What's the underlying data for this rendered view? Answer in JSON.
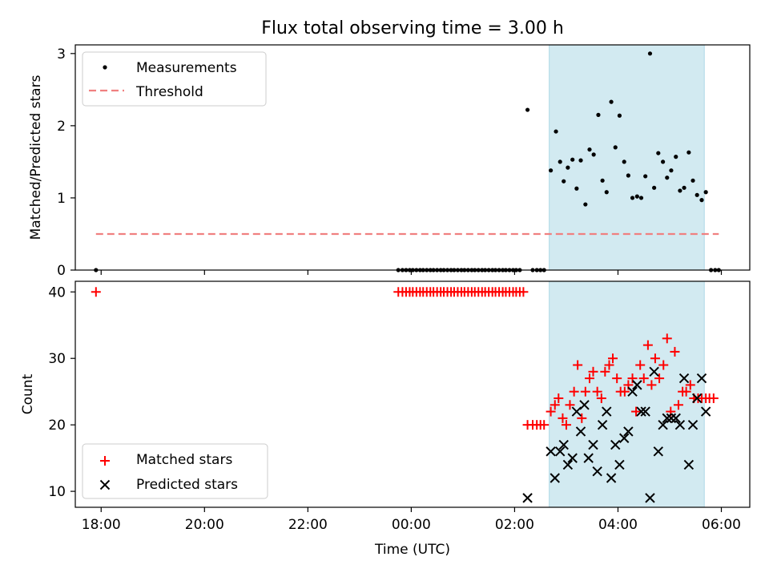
{
  "title": "Flux total observing time = 3.00 h",
  "colors": {
    "measurement": "#000000",
    "threshold": "#f08080",
    "shade": "#add8e6",
    "matched": "#ff0000",
    "predicted": "#000000"
  },
  "chart_data": [
    {
      "type": "scatter",
      "id": "top",
      "ylabel": "Matched/Predicted stars",
      "xlabel": "",
      "xlim": [
        -6.5,
        6.55
      ],
      "ylim": [
        0,
        3.12
      ],
      "yticks": [
        0,
        1,
        2,
        3
      ],
      "grid": false,
      "legend_position": "upper left",
      "shaded_span": [
        2.67,
        5.67
      ],
      "threshold": {
        "name": "Threshold",
        "y": 0.5,
        "x": [
          -6.1,
          5.95
        ]
      },
      "series": [
        {
          "name": "Measurements",
          "points": [
            [
              -6.1,
              0
            ],
            [
              -0.25,
              0
            ],
            [
              -0.17,
              0
            ],
            [
              -0.1,
              0
            ],
            [
              -0.03,
              0
            ],
            [
              0.03,
              0
            ],
            [
              0.1,
              0
            ],
            [
              0.17,
              0
            ],
            [
              0.23,
              0
            ],
            [
              0.3,
              0
            ],
            [
              0.37,
              0
            ],
            [
              0.43,
              0
            ],
            [
              0.5,
              0
            ],
            [
              0.57,
              0
            ],
            [
              0.63,
              0
            ],
            [
              0.7,
              0
            ],
            [
              0.77,
              0
            ],
            [
              0.83,
              0
            ],
            [
              0.9,
              0
            ],
            [
              0.97,
              0
            ],
            [
              1.03,
              0
            ],
            [
              1.1,
              0
            ],
            [
              1.17,
              0
            ],
            [
              1.23,
              0
            ],
            [
              1.3,
              0
            ],
            [
              1.37,
              0
            ],
            [
              1.43,
              0
            ],
            [
              1.5,
              0
            ],
            [
              1.57,
              0
            ],
            [
              1.63,
              0
            ],
            [
              1.7,
              0
            ],
            [
              1.77,
              0
            ],
            [
              1.83,
              0
            ],
            [
              1.9,
              0
            ],
            [
              1.97,
              0
            ],
            [
              2.03,
              0
            ],
            [
              2.1,
              0
            ],
            [
              2.25,
              2.22
            ],
            [
              2.35,
              0
            ],
            [
              2.43,
              0
            ],
            [
              2.5,
              0
            ],
            [
              2.57,
              0
            ],
            [
              2.7,
              1.38
            ],
            [
              2.8,
              1.92
            ],
            [
              2.88,
              1.5
            ],
            [
              2.95,
              1.23
            ],
            [
              3.03,
              1.42
            ],
            [
              3.12,
              1.53
            ],
            [
              3.2,
              1.13
            ],
            [
              3.28,
              1.52
            ],
            [
              3.37,
              0.91
            ],
            [
              3.45,
              1.67
            ],
            [
              3.53,
              1.6
            ],
            [
              3.62,
              2.15
            ],
            [
              3.7,
              1.24
            ],
            [
              3.78,
              1.08
            ],
            [
              3.87,
              2.33
            ],
            [
              3.95,
              1.7
            ],
            [
              4.03,
              2.14
            ],
            [
              4.12,
              1.5
            ],
            [
              4.2,
              1.31
            ],
            [
              4.28,
              1.0
            ],
            [
              4.37,
              1.02
            ],
            [
              4.45,
              1.0
            ],
            [
              4.53,
              1.3
            ],
            [
              4.62,
              3.0
            ],
            [
              4.7,
              1.14
            ],
            [
              4.78,
              1.62
            ],
            [
              4.87,
              1.5
            ],
            [
              4.95,
              1.28
            ],
            [
              5.03,
              1.38
            ],
            [
              5.12,
              1.57
            ],
            [
              5.2,
              1.1
            ],
            [
              5.28,
              1.14
            ],
            [
              5.37,
              1.63
            ],
            [
              5.45,
              1.24
            ],
            [
              5.53,
              1.04
            ],
            [
              5.62,
              0.97
            ],
            [
              5.7,
              1.08
            ],
            [
              5.8,
              0
            ],
            [
              5.88,
              0
            ],
            [
              5.95,
              0
            ]
          ]
        }
      ]
    },
    {
      "type": "scatter",
      "id": "bottom",
      "ylabel": "Count",
      "xlabel": "Time (UTC)",
      "xlim": [
        -6.5,
        6.55
      ],
      "ylim": [
        7.6,
        41.6
      ],
      "yticks": [
        10,
        20,
        30,
        40
      ],
      "xticks": [
        {
          "value": -6,
          "label": "18:00"
        },
        {
          "value": -4,
          "label": "20:00"
        },
        {
          "value": -2,
          "label": "22:00"
        },
        {
          "value": 0,
          "label": "00:00"
        },
        {
          "value": 2,
          "label": "02:00"
        },
        {
          "value": 4,
          "label": "04:00"
        },
        {
          "value": 6,
          "label": "06:00"
        }
      ],
      "grid": false,
      "legend_position": "lower left",
      "shaded_span": [
        2.67,
        5.67
      ],
      "series": [
        {
          "name": "Matched stars",
          "marker": "plus",
          "points": [
            [
              -6.1,
              40
            ],
            [
              -0.25,
              40
            ],
            [
              -0.17,
              40
            ],
            [
              -0.1,
              40
            ],
            [
              -0.03,
              40
            ],
            [
              0.03,
              40
            ],
            [
              0.1,
              40
            ],
            [
              0.17,
              40
            ],
            [
              0.23,
              40
            ],
            [
              0.3,
              40
            ],
            [
              0.37,
              40
            ],
            [
              0.43,
              40
            ],
            [
              0.5,
              40
            ],
            [
              0.57,
              40
            ],
            [
              0.63,
              40
            ],
            [
              0.7,
              40
            ],
            [
              0.77,
              40
            ],
            [
              0.83,
              40
            ],
            [
              0.9,
              40
            ],
            [
              0.97,
              40
            ],
            [
              1.03,
              40
            ],
            [
              1.1,
              40
            ],
            [
              1.17,
              40
            ],
            [
              1.23,
              40
            ],
            [
              1.3,
              40
            ],
            [
              1.37,
              40
            ],
            [
              1.43,
              40
            ],
            [
              1.5,
              40
            ],
            [
              1.57,
              40
            ],
            [
              1.63,
              40
            ],
            [
              1.7,
              40
            ],
            [
              1.77,
              40
            ],
            [
              1.83,
              40
            ],
            [
              1.9,
              40
            ],
            [
              1.97,
              40
            ],
            [
              2.03,
              40
            ],
            [
              2.1,
              40
            ],
            [
              2.17,
              40
            ],
            [
              2.25,
              20
            ],
            [
              2.35,
              20
            ],
            [
              2.43,
              20
            ],
            [
              2.5,
              20
            ],
            [
              2.57,
              20
            ],
            [
              2.7,
              22
            ],
            [
              2.78,
              23
            ],
            [
              2.85,
              24
            ],
            [
              2.93,
              21
            ],
            [
              3.0,
              20
            ],
            [
              3.07,
              23
            ],
            [
              3.15,
              25
            ],
            [
              3.22,
              29
            ],
            [
              3.3,
              21
            ],
            [
              3.37,
              25
            ],
            [
              3.45,
              27
            ],
            [
              3.52,
              28
            ],
            [
              3.6,
              25
            ],
            [
              3.68,
              24
            ],
            [
              3.75,
              28
            ],
            [
              3.83,
              29
            ],
            [
              3.9,
              30
            ],
            [
              3.98,
              27
            ],
            [
              4.05,
              25
            ],
            [
              4.13,
              25
            ],
            [
              4.2,
              26
            ],
            [
              4.28,
              27
            ],
            [
              4.35,
              22
            ],
            [
              4.43,
              29
            ],
            [
              4.5,
              27
            ],
            [
              4.58,
              32
            ],
            [
              4.65,
              26
            ],
            [
              4.72,
              30
            ],
            [
              4.8,
              27
            ],
            [
              4.88,
              29
            ],
            [
              4.95,
              33
            ],
            [
              5.02,
              22
            ],
            [
              5.1,
              31
            ],
            [
              5.17,
              23
            ],
            [
              5.25,
              25
            ],
            [
              5.32,
              25
            ],
            [
              5.4,
              26
            ],
            [
              5.47,
              24
            ],
            [
              5.55,
              24
            ],
            [
              5.62,
              24
            ],
            [
              5.7,
              24
            ],
            [
              5.77,
              24
            ],
            [
              5.85,
              24
            ]
          ]
        },
        {
          "name": "Predicted stars",
          "marker": "x",
          "points": [
            [
              2.25,
              9
            ],
            [
              2.7,
              16
            ],
            [
              2.78,
              12
            ],
            [
              2.88,
              16
            ],
            [
              2.95,
              17
            ],
            [
              3.03,
              14
            ],
            [
              3.12,
              15
            ],
            [
              3.2,
              22
            ],
            [
              3.28,
              19
            ],
            [
              3.35,
              23
            ],
            [
              3.43,
              15
            ],
            [
              3.52,
              17
            ],
            [
              3.6,
              13
            ],
            [
              3.7,
              20
            ],
            [
              3.78,
              22
            ],
            [
              3.87,
              12
            ],
            [
              3.95,
              17
            ],
            [
              4.03,
              14
            ],
            [
              4.12,
              18
            ],
            [
              4.2,
              19
            ],
            [
              4.28,
              25
            ],
            [
              4.37,
              26
            ],
            [
              4.45,
              22
            ],
            [
              4.53,
              22
            ],
            [
              4.62,
              9
            ],
            [
              4.7,
              28
            ],
            [
              4.78,
              16
            ],
            [
              4.87,
              20
            ],
            [
              4.95,
              21
            ],
            [
              5.03,
              21
            ],
            [
              5.12,
              21
            ],
            [
              5.2,
              20
            ],
            [
              5.28,
              27
            ],
            [
              5.37,
              14
            ],
            [
              5.45,
              20
            ],
            [
              5.53,
              24
            ],
            [
              5.62,
              27
            ],
            [
              5.7,
              22
            ]
          ]
        }
      ]
    }
  ]
}
